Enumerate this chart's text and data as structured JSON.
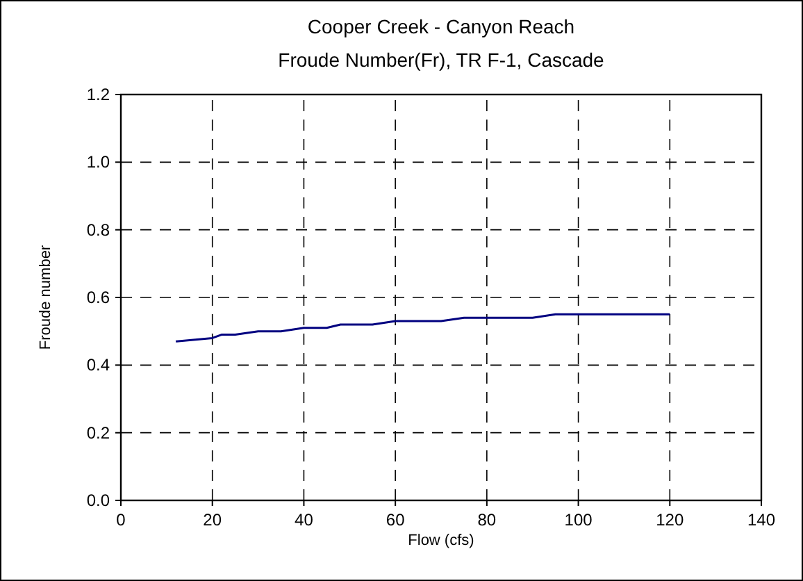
{
  "chart_data": {
    "type": "line",
    "title": "Cooper Creek - Canyon Reach",
    "subtitle": "Froude Number(Fr), TR F-1, Cascade",
    "xlabel": "Flow (cfs)",
    "ylabel": "Froude number",
    "series": [
      {
        "color": "#000080",
        "x": [
          12,
          20,
          22,
          25,
          30,
          35,
          40,
          45,
          48,
          55,
          60,
          70,
          75,
          90,
          95,
          120
        ],
        "values": [
          0.47,
          0.48,
          0.49,
          0.49,
          0.5,
          0.5,
          0.51,
          0.51,
          0.52,
          0.52,
          0.53,
          0.53,
          0.54,
          0.54,
          0.55,
          0.55
        ]
      }
    ],
    "xlim": [
      0,
      140
    ],
    "xticks": [
      0,
      20,
      40,
      60,
      80,
      100,
      120,
      140
    ],
    "ylim": [
      0,
      1.2
    ],
    "yticks": [
      {
        "value": 0,
        "label": "0.0"
      },
      {
        "value": 0.2,
        "label": "0.2"
      },
      {
        "value": 0.4,
        "label": "0.4"
      },
      {
        "value": 0.6,
        "label": "0.6"
      },
      {
        "value": 0.8,
        "label": "0.8"
      },
      {
        "value": 1,
        "label": "1.0"
      },
      {
        "value": 1.2,
        "label": "1.2"
      }
    ],
    "grid": true,
    "line_style": "solid",
    "marker": "none"
  }
}
